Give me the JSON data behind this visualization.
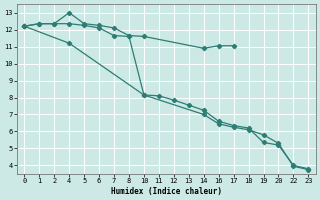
{
  "xlabel": "Humidex (Indice chaleur)",
  "bg_color": "#cce9e5",
  "grid_color": "#b0d8d2",
  "line_color": "#2d7d74",
  "xtick_labels": [
    "0",
    "1",
    "2",
    "4",
    "5",
    "6",
    "7",
    "8",
    "10",
    "11",
    "12",
    "13",
    "14",
    "16",
    "17",
    "18",
    "19",
    "20",
    "22",
    "23"
  ],
  "xtick_vals": [
    0,
    1,
    2,
    3,
    4,
    5,
    6,
    7,
    8,
    9,
    10,
    11,
    12,
    13,
    14,
    15,
    16,
    17,
    18,
    19
  ],
  "yticks": [
    4,
    5,
    6,
    7,
    8,
    9,
    10,
    11,
    12,
    13
  ],
  "xlim": [
    -0.5,
    19.5
  ],
  "ylim": [
    3.5,
    13.5
  ],
  "line1_x": [
    0,
    1,
    2,
    3,
    4,
    5,
    6,
    7,
    8,
    12,
    13,
    14
  ],
  "line1_y": [
    12.2,
    12.35,
    12.35,
    13.0,
    12.35,
    12.25,
    12.1,
    11.65,
    11.6,
    10.9,
    11.05,
    11.05
  ],
  "line2_x": [
    0,
    1,
    2,
    3,
    4,
    5,
    6,
    7,
    8,
    9,
    10,
    11,
    12,
    13,
    14,
    15,
    16,
    17,
    18,
    19
  ],
  "line2_y": [
    12.2,
    12.35,
    12.35,
    12.35,
    12.25,
    12.1,
    11.65,
    11.6,
    8.15,
    8.1,
    7.85,
    7.55,
    7.25,
    6.6,
    6.35,
    6.2,
    5.35,
    5.2,
    4.0,
    3.8
  ],
  "line3_x": [
    0,
    3,
    8,
    12,
    13,
    14,
    15,
    16,
    17,
    18,
    19
  ],
  "line3_y": [
    12.2,
    11.2,
    8.15,
    7.0,
    6.45,
    6.25,
    6.1,
    5.8,
    5.3,
    3.95,
    3.75
  ]
}
